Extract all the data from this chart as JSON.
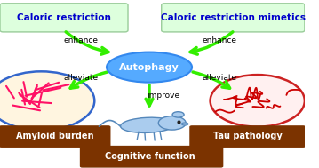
{
  "bg_color": "#ffffff",
  "green_box_color": "#ddffdd",
  "green_box_edge": "#99cc99",
  "autophagy_fill": "#55aaff",
  "autophagy_edge": "#3388ee",
  "autophagy_text": "Autophagy",
  "brown_box_color": "#7B3300",
  "brown_box_text_color": "#ffffff",
  "arrow_color": "#33ee00",
  "label_caloric_left": "Caloric restriction",
  "label_caloric_right": "Caloric restriction mimetics",
  "label_amyloid": "Amyloid burden",
  "label_tau": "Tau pathology",
  "label_cognitive": "Cognitive function",
  "label_enhance_left": "enhance",
  "label_enhance_right": "enhance",
  "label_alleviate_left": "alleviate",
  "label_alleviate_right": "alleviate",
  "label_improve": "improve",
  "title_color": "#0000cc",
  "amyloid_circle_fill": "#fff5e0",
  "amyloid_circle_edge": "#3366cc",
  "tau_circle_fill": "#fff0f0",
  "tau_circle_edge": "#cc2222",
  "mouse_color": "#aaccee",
  "mouse_edge": "#5588bb"
}
